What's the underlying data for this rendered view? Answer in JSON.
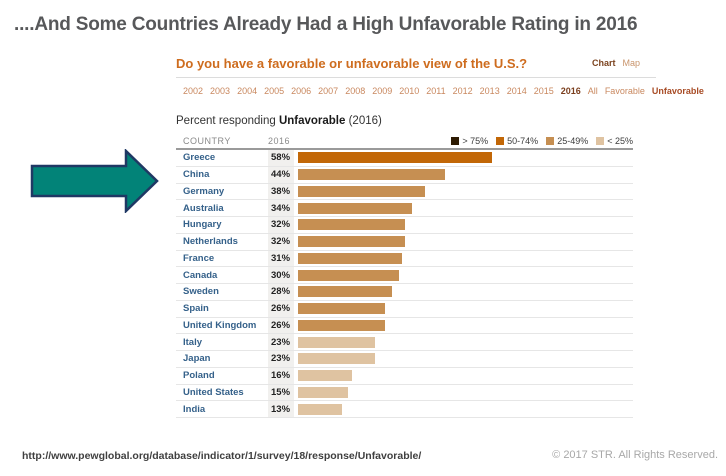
{
  "slide": {
    "title": "....And Some Countries Already Had a High Unfavorable Rating in 2016",
    "footer_url": "http://www.pewglobal.org/database/indicator/1/survey/18/response/Unfavorable/",
    "footer_copyright": "© 2017 STR. All Rights Reserved."
  },
  "widget": {
    "question": "Do you have a favorable or unfavorable view of the U.S.?",
    "view_tabs": [
      {
        "label": "Chart",
        "active": true
      },
      {
        "label": "Map",
        "active": false
      }
    ],
    "year_nav": {
      "years": [
        "2002",
        "2003",
        "2004",
        "2005",
        "2006",
        "2007",
        "2008",
        "2009",
        "2010",
        "2011",
        "2012",
        "2013",
        "2014",
        "2015"
      ],
      "active_year": "2016",
      "filters": [
        "All",
        "Favorable"
      ],
      "active_filter": "Unfavorable"
    },
    "subtitle_prefix": "Percent responding ",
    "subtitle_bold": "Unfavorable",
    "subtitle_suffix": " (2016)",
    "columns": {
      "country": "COUNTRY",
      "year": "2016"
    }
  },
  "arrow": {
    "fill": "#028378",
    "stroke": "#1f3864"
  },
  "chart_data": {
    "type": "bar",
    "orientation": "horizontal",
    "title": "Percent responding Unfavorable (2016)",
    "categories": [
      "Greece",
      "China",
      "Germany",
      "Australia",
      "Hungary",
      "Netherlands",
      "France",
      "Canada",
      "Sweden",
      "Spain",
      "United Kingdom",
      "Italy",
      "Japan",
      "Poland",
      "United States",
      "India"
    ],
    "values": [
      58,
      44,
      38,
      34,
      32,
      32,
      31,
      30,
      28,
      26,
      26,
      23,
      23,
      16,
      15,
      13
    ],
    "value_labels": [
      "58%",
      "44%",
      "38%",
      "34%",
      "32%",
      "32%",
      "31%",
      "30%",
      "28%",
      "26%",
      "26%",
      "23%",
      "23%",
      "16%",
      "15%",
      "13%"
    ],
    "xlim": [
      0,
      100
    ],
    "grid": false,
    "legend_position": "top-right",
    "legend": [
      {
        "label": "> 75%",
        "color": "#2e1b02",
        "min": 75
      },
      {
        "label": "50-74%",
        "color": "#c26707",
        "min": 50
      },
      {
        "label": "25-49%",
        "color": "#c68f52",
        "min": 25
      },
      {
        "label": "< 25%",
        "color": "#dfc3a1",
        "min": 0
      }
    ]
  }
}
